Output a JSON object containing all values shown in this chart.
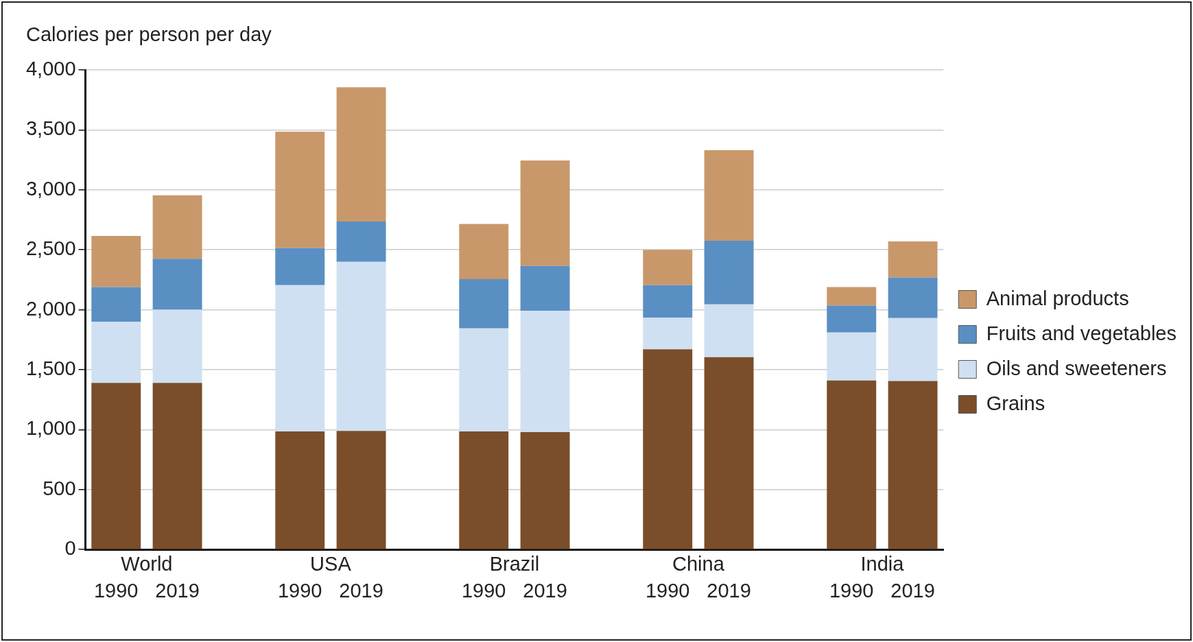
{
  "chart_data": {
    "type": "bar",
    "stacked": true,
    "ylabel": "Calories per person per day",
    "categories": [
      "1990",
      "2019",
      null,
      "1990",
      "2019",
      null,
      "1990",
      "2019",
      null,
      "1990",
      "2019",
      null,
      "1990",
      "2019"
    ],
    "annotations": [
      "World",
      "USA",
      "Brazil",
      "China",
      "India"
    ],
    "series": [
      {
        "name": "Grains",
        "color": "#7a4e2a",
        "values": [
          1390,
          1390,
          null,
          985,
          990,
          null,
          985,
          980,
          null,
          1670,
          1605,
          null,
          1410,
          1405
        ]
      },
      {
        "name": "Oils and sweeteners",
        "color": "#cfe0f2",
        "values": [
          510,
          610,
          null,
          1220,
          1410,
          null,
          860,
          1010,
          null,
          265,
          440,
          null,
          400,
          525
        ]
      },
      {
        "name": "Fruits and vegetables",
        "color": "#5a8fc3",
        "values": [
          290,
          425,
          null,
          310,
          335,
          null,
          410,
          375,
          null,
          270,
          530,
          null,
          225,
          340
        ]
      },
      {
        "name": "Animal products",
        "color": "#c9986a",
        "values": [
          425,
          530,
          null,
          970,
          1120,
          null,
          460,
          880,
          null,
          295,
          755,
          null,
          155,
          300
        ]
      }
    ],
    "ylim": [
      0,
      4000
    ],
    "yticks": [
      0,
      500,
      {
        "value": 1000,
        "label": "1,000"
      },
      {
        "value": 1500,
        "label": "1,500"
      },
      {
        "value": 2000,
        "label": "2,000"
      },
      {
        "value": 2500,
        "label": "2,500"
      },
      {
        "value": 3000,
        "label": "3,000"
      },
      {
        "value": 3500,
        "label": "3,500"
      },
      {
        "value": 4000,
        "label": "4,000"
      }
    ],
    "grid": "y",
    "legend": "right"
  }
}
